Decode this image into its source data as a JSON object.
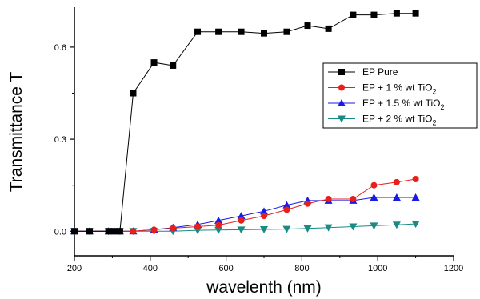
{
  "chart_data": {
    "type": "line",
    "title": "",
    "xlabel": "wavelenth (nm)",
    "ylabel": "Transmittance  T",
    "xlim": [
      200,
      1200
    ],
    "ylim": [
      -0.08,
      0.73
    ],
    "xticks": [
      200,
      400,
      600,
      800,
      1000,
      1200
    ],
    "xtick_labels": [
      "200",
      "400",
      "600",
      "800",
      "1000",
      "1200"
    ],
    "yticks": [
      0.0,
      0.3,
      0.6
    ],
    "ytick_labels": [
      "0.0",
      "0.3",
      "0.6"
    ],
    "grid": false,
    "legend_position": "right",
    "series": [
      {
        "name": "EP Pure",
        "legend": {
          "main": "EP Pure",
          "sub": "",
          "tail": ""
        },
        "color": "#000000",
        "marker": "square",
        "x": [
          200,
          240,
          290,
          305,
          320,
          355,
          410,
          460,
          525,
          580,
          640,
          700,
          760,
          815,
          870,
          935,
          990,
          1050,
          1100
        ],
        "y": [
          0.0,
          0.0,
          0.0,
          0.0,
          0.0,
          0.45,
          0.55,
          0.54,
          0.65,
          0.65,
          0.65,
          0.645,
          0.65,
          0.67,
          0.66,
          0.705,
          0.705,
          0.71,
          0.71
        ]
      },
      {
        "name": "EP + 1 % wt TiO2",
        "legend": {
          "main": "EP + 1 % wt TiO",
          "sub": "2",
          "tail": ""
        },
        "color": "#e8201b",
        "marker": "circle",
        "x": [
          200,
          240,
          290,
          305,
          320,
          355,
          410,
          460,
          525,
          580,
          640,
          700,
          760,
          815,
          870,
          935,
          990,
          1050,
          1100
        ],
        "y": [
          0.0,
          0.0,
          0.0,
          0.0,
          0.0,
          0.0,
          0.005,
          0.01,
          0.015,
          0.02,
          0.035,
          0.05,
          0.07,
          0.09,
          0.105,
          0.105,
          0.15,
          0.16,
          0.17
        ]
      },
      {
        "name": "EP + 1.5 % wt TiO2",
        "legend": {
          "main": "EP + 1.5 % wt TiO",
          "sub": "2",
          "tail": ""
        },
        "color": "#1a1ae6",
        "marker": "triangle-up",
        "x": [
          200,
          240,
          290,
          305,
          320,
          355,
          410,
          460,
          525,
          580,
          640,
          700,
          760,
          815,
          870,
          935,
          990,
          1050,
          1100
        ],
        "y": [
          0.0,
          0.0,
          0.0,
          0.0,
          0.0,
          0.0,
          0.005,
          0.012,
          0.022,
          0.035,
          0.05,
          0.065,
          0.085,
          0.1,
          0.1,
          0.1,
          0.11,
          0.11,
          0.11
        ]
      },
      {
        "name": "EP + 2 % wt TiO2",
        "legend": {
          "main": "EP + 2 % wt TiO",
          "sub": "2",
          "tail": ""
        },
        "color": "#198a86",
        "marker": "triangle-down",
        "x": [
          200,
          240,
          290,
          305,
          320,
          355,
          410,
          460,
          525,
          580,
          640,
          700,
          760,
          815,
          870,
          935,
          990,
          1050,
          1100
        ],
        "y": [
          0.0,
          0.0,
          0.0,
          0.0,
          0.0,
          0.0,
          0.0,
          0.0,
          0.003,
          0.004,
          0.005,
          0.006,
          0.007,
          0.009,
          0.012,
          0.015,
          0.018,
          0.021,
          0.024
        ]
      }
    ]
  }
}
